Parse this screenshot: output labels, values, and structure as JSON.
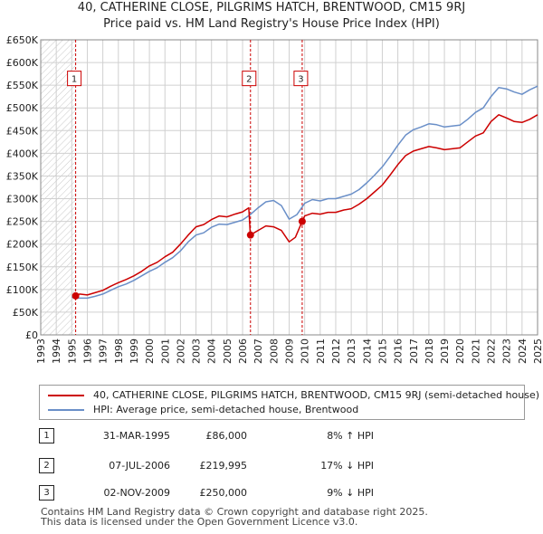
{
  "header": {
    "title_line1": "40, CATHERINE CLOSE, PILGRIMS HATCH, BRENTWOOD, CM15 9RJ",
    "title_line2": "Price paid vs. HM Land Registry's House Price Index (HPI)"
  },
  "colors": {
    "property_line": "#cc0000",
    "hpi_line": "#6a8fc8",
    "grid": "#d0d0d0",
    "marker_box_border": "#cc0000",
    "sale_vline": "#cc0000",
    "hatch": "#c8c8c8"
  },
  "chart_data": {
    "type": "line",
    "title": "40, CATHERINE CLOSE, PILGRIMS HATCH, BRENTWOOD, CM15 9RJ",
    "subtitle": "Price paid vs. HM Land Registry's House Price Index (HPI)",
    "xlabel": "",
    "ylabel": "",
    "xlim": [
      1993,
      2025
    ],
    "ylim": [
      0,
      650000
    ],
    "grid": true,
    "y_ticks": [
      {
        "value": 0,
        "label": "£0"
      },
      {
        "value": 50000,
        "label": "£50K"
      },
      {
        "value": 100000,
        "label": "£100K"
      },
      {
        "value": 150000,
        "label": "£150K"
      },
      {
        "value": 200000,
        "label": "£200K"
      },
      {
        "value": 250000,
        "label": "£250K"
      },
      {
        "value": 300000,
        "label": "£300K"
      },
      {
        "value": 350000,
        "label": "£350K"
      },
      {
        "value": 400000,
        "label": "£400K"
      },
      {
        "value": 450000,
        "label": "£450K"
      },
      {
        "value": 500000,
        "label": "£500K"
      },
      {
        "value": 550000,
        "label": "£550K"
      },
      {
        "value": 600000,
        "label": "£600K"
      },
      {
        "value": 650000,
        "label": "£650K"
      }
    ],
    "x_ticks": [
      "1993",
      "1994",
      "1995",
      "1996",
      "1997",
      "1998",
      "1999",
      "2000",
      "2001",
      "2002",
      "2003",
      "2004",
      "2005",
      "2006",
      "2007",
      "2008",
      "2009",
      "2010",
      "2011",
      "2012",
      "2013",
      "2014",
      "2015",
      "2016",
      "2017",
      "2018",
      "2019",
      "2020",
      "2021",
      "2022",
      "2023",
      "2024",
      "2025"
    ],
    "hatched_region_until": 1995.25,
    "series": [
      {
        "name": "40, CATHERINE CLOSE, PILGRIMS HATCH, BRENTWOOD, CM15 9RJ (semi-detached house)",
        "color": "#cc0000",
        "points": [
          [
            1995.25,
            86000
          ],
          [
            1995.5,
            90000
          ],
          [
            1996.0,
            88000
          ],
          [
            1996.5,
            93000
          ],
          [
            1997.0,
            98000
          ],
          [
            1997.5,
            107000
          ],
          [
            1998.0,
            115000
          ],
          [
            1998.5,
            122000
          ],
          [
            1999.0,
            130000
          ],
          [
            1999.5,
            140000
          ],
          [
            2000.0,
            152000
          ],
          [
            2000.5,
            160000
          ],
          [
            2001.0,
            172000
          ],
          [
            2001.5,
            182000
          ],
          [
            2002.0,
            200000
          ],
          [
            2002.5,
            220000
          ],
          [
            2003.0,
            238000
          ],
          [
            2003.5,
            243000
          ],
          [
            2004.0,
            254000
          ],
          [
            2004.5,
            262000
          ],
          [
            2005.0,
            260000
          ],
          [
            2005.5,
            266000
          ],
          [
            2006.0,
            271000
          ],
          [
            2006.4,
            280000
          ],
          [
            2006.5,
            219995
          ],
          [
            2007.0,
            230000
          ],
          [
            2007.5,
            240000
          ],
          [
            2008.0,
            238000
          ],
          [
            2008.5,
            230000
          ],
          [
            2009.0,
            205000
          ],
          [
            2009.4,
            215000
          ],
          [
            2009.84,
            250000
          ],
          [
            2010.0,
            262000
          ],
          [
            2010.5,
            268000
          ],
          [
            2011.0,
            266000
          ],
          [
            2011.5,
            270000
          ],
          [
            2012.0,
            270000
          ],
          [
            2012.5,
            275000
          ],
          [
            2013.0,
            278000
          ],
          [
            2013.5,
            288000
          ],
          [
            2014.0,
            300000
          ],
          [
            2014.5,
            315000
          ],
          [
            2015.0,
            330000
          ],
          [
            2015.5,
            352000
          ],
          [
            2016.0,
            375000
          ],
          [
            2016.5,
            395000
          ],
          [
            2017.0,
            405000
          ],
          [
            2017.5,
            410000
          ],
          [
            2018.0,
            415000
          ],
          [
            2018.5,
            412000
          ],
          [
            2019.0,
            408000
          ],
          [
            2019.5,
            410000
          ],
          [
            2020.0,
            412000
          ],
          [
            2020.5,
            425000
          ],
          [
            2021.0,
            438000
          ],
          [
            2021.5,
            445000
          ],
          [
            2022.0,
            470000
          ],
          [
            2022.5,
            485000
          ],
          [
            2023.0,
            478000
          ],
          [
            2023.5,
            470000
          ],
          [
            2024.0,
            468000
          ],
          [
            2024.5,
            475000
          ],
          [
            2025.0,
            485000
          ]
        ]
      },
      {
        "name": "HPI: Average price, semi-detached house, Brentwood",
        "color": "#6a8fc8",
        "points": [
          [
            1995.0,
            83000
          ],
          [
            1995.5,
            81000
          ],
          [
            1996.0,
            81000
          ],
          [
            1996.5,
            85000
          ],
          [
            1997.0,
            90000
          ],
          [
            1997.5,
            98000
          ],
          [
            1998.0,
            106000
          ],
          [
            1998.5,
            112000
          ],
          [
            1999.0,
            120000
          ],
          [
            1999.5,
            130000
          ],
          [
            2000.0,
            140000
          ],
          [
            2000.5,
            148000
          ],
          [
            2001.0,
            160000
          ],
          [
            2001.5,
            170000
          ],
          [
            2002.0,
            185000
          ],
          [
            2002.5,
            205000
          ],
          [
            2003.0,
            220000
          ],
          [
            2003.5,
            225000
          ],
          [
            2004.0,
            237000
          ],
          [
            2004.5,
            244000
          ],
          [
            2005.0,
            243000
          ],
          [
            2005.5,
            248000
          ],
          [
            2006.0,
            253000
          ],
          [
            2006.5,
            265000
          ],
          [
            2007.0,
            280000
          ],
          [
            2007.5,
            293000
          ],
          [
            2008.0,
            296000
          ],
          [
            2008.5,
            285000
          ],
          [
            2009.0,
            255000
          ],
          [
            2009.5,
            265000
          ],
          [
            2010.0,
            290000
          ],
          [
            2010.5,
            298000
          ],
          [
            2011.0,
            295000
          ],
          [
            2011.5,
            300000
          ],
          [
            2012.0,
            300000
          ],
          [
            2012.5,
            305000
          ],
          [
            2013.0,
            310000
          ],
          [
            2013.5,
            320000
          ],
          [
            2014.0,
            335000
          ],
          [
            2014.5,
            352000
          ],
          [
            2015.0,
            370000
          ],
          [
            2015.5,
            393000
          ],
          [
            2016.0,
            418000
          ],
          [
            2016.5,
            440000
          ],
          [
            2017.0,
            452000
          ],
          [
            2017.5,
            458000
          ],
          [
            2018.0,
            465000
          ],
          [
            2018.5,
            463000
          ],
          [
            2019.0,
            458000
          ],
          [
            2019.5,
            460000
          ],
          [
            2020.0,
            462000
          ],
          [
            2020.5,
            475000
          ],
          [
            2021.0,
            490000
          ],
          [
            2021.5,
            500000
          ],
          [
            2022.0,
            525000
          ],
          [
            2022.5,
            545000
          ],
          [
            2023.0,
            542000
          ],
          [
            2023.5,
            535000
          ],
          [
            2024.0,
            530000
          ],
          [
            2024.5,
            540000
          ],
          [
            2025.0,
            548000
          ]
        ]
      }
    ],
    "sales": [
      {
        "label": "1",
        "x": 1995.25,
        "value": 86000
      },
      {
        "label": "2",
        "x": 2006.51,
        "value": 219995
      },
      {
        "label": "3",
        "x": 2009.84,
        "value": 250000
      }
    ],
    "marker_box_value": 565000
  },
  "legend": {
    "property_label": "40, CATHERINE CLOSE, PILGRIMS HATCH, BRENTWOOD, CM15 9RJ (semi-detached house)",
    "hpi_label": "HPI: Average price, semi-detached house, Brentwood"
  },
  "transactions": [
    {
      "num": "1",
      "date": "31-MAR-1995",
      "price": "£86,000",
      "change": "8% ↑ HPI"
    },
    {
      "num": "2",
      "date": "07-JUL-2006",
      "price": "£219,995",
      "change": "17% ↓ HPI"
    },
    {
      "num": "3",
      "date": "02-NOV-2009",
      "price": "£250,000",
      "change": "9% ↓ HPI"
    }
  ],
  "footer": {
    "line1": "Contains HM Land Registry data © Crown copyright and database right 2025.",
    "line2": "This data is licensed under the Open Government Licence v3.0."
  }
}
